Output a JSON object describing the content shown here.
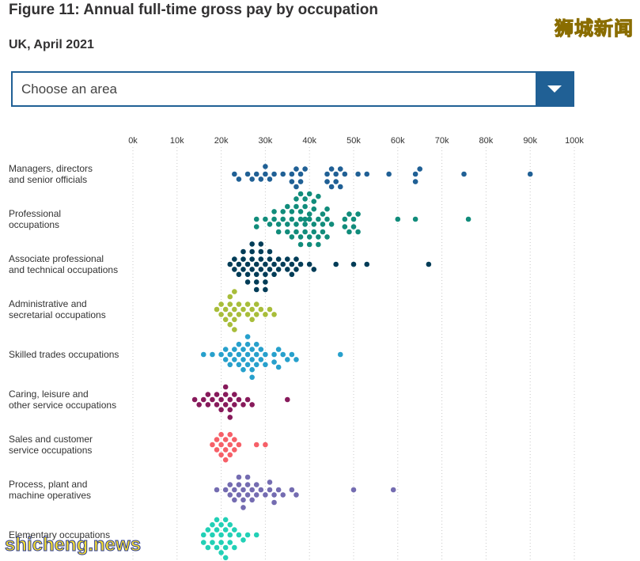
{
  "title": "Figure 11: Annual full-time gross pay by occupation",
  "subtitle": "UK, April 2021",
  "watermark_top": "狮城新闻",
  "watermark_bottom": "shicheng.news",
  "area_select": {
    "selected": "Choose an area",
    "icon": "chevron-down-icon"
  },
  "chart_data": {
    "type": "scatter",
    "title": "Figure 11: Annual full-time gross pay by occupation",
    "subtitle": "UK, April 2021",
    "xlim": [
      0,
      100
    ],
    "x_ticks": [
      "0k",
      "10k",
      "20k",
      "30k",
      "40k",
      "50k",
      "60k",
      "70k",
      "80k",
      "90k",
      "100k"
    ],
    "x_tick_values": [
      0,
      10,
      20,
      30,
      40,
      50,
      60,
      70,
      80,
      90,
      100
    ],
    "grid": "vertical-dotted",
    "series": [
      {
        "label_lines": [
          "Managers, directors",
          "and senior officials"
        ],
        "color": "#206095",
        "values": [
          23,
          24,
          26,
          27,
          28,
          29,
          30,
          30,
          31,
          32,
          34,
          36,
          36,
          37,
          37,
          38,
          38,
          39,
          44,
          44,
          45,
          45,
          46,
          46,
          47,
          47,
          48,
          51,
          53,
          58,
          64,
          64,
          65,
          75,
          90
        ]
      },
      {
        "label_lines": [
          "Professional",
          "occupations"
        ],
        "color": "#118c7b",
        "values": [
          28,
          28,
          30,
          31,
          32,
          32,
          33,
          33,
          34,
          34,
          35,
          35,
          35,
          36,
          36,
          36,
          37,
          37,
          37,
          37,
          38,
          38,
          38,
          38,
          38,
          39,
          39,
          39,
          39,
          39,
          40,
          40,
          40,
          40,
          40,
          41,
          41,
          41,
          41,
          42,
          42,
          42,
          42,
          43,
          43,
          43,
          44,
          44,
          44,
          45,
          48,
          48,
          49,
          49,
          50,
          50,
          51,
          51,
          60,
          64,
          76
        ]
      },
      {
        "label_lines": [
          "Associate professional",
          "and technical occupations"
        ],
        "color": "#003c57",
        "values": [
          22,
          23,
          23,
          24,
          24,
          25,
          25,
          25,
          26,
          26,
          26,
          27,
          27,
          27,
          27,
          28,
          28,
          28,
          28,
          29,
          29,
          29,
          29,
          30,
          30,
          30,
          30,
          31,
          31,
          31,
          32,
          32,
          33,
          33,
          34,
          35,
          35,
          36,
          36,
          37,
          37,
          38,
          40,
          41,
          46,
          50,
          53,
          67
        ]
      },
      {
        "label_lines": [
          "Administrative and",
          "secretarial occupations"
        ],
        "color": "#a8bd3a",
        "values": [
          19,
          20,
          20,
          21,
          21,
          22,
          22,
          22,
          22,
          23,
          23,
          23,
          23,
          24,
          24,
          25,
          26,
          26,
          27,
          27,
          28,
          28,
          29,
          30,
          31,
          32
        ]
      },
      {
        "label_lines": [
          "Skilled trades occupations"
        ],
        "color": "#27a0cc",
        "values": [
          16,
          18,
          20,
          21,
          21,
          22,
          22,
          23,
          23,
          24,
          24,
          24,
          25,
          25,
          25,
          26,
          26,
          26,
          26,
          27,
          27,
          27,
          27,
          28,
          28,
          28,
          29,
          29,
          30,
          30,
          32,
          32,
          33,
          33,
          34,
          35,
          36,
          37,
          47
        ]
      },
      {
        "label_lines": [
          "Caring, leisure and",
          "other service occupations"
        ],
        "color": "#871a5b",
        "values": [
          14,
          15,
          16,
          17,
          17,
          18,
          19,
          19,
          20,
          20,
          21,
          21,
          21,
          22,
          22,
          22,
          23,
          23,
          24,
          25,
          26,
          27,
          35
        ]
      },
      {
        "label_lines": [
          "Sales and customer",
          "service occupations"
        ],
        "color": "#f66068",
        "values": [
          18,
          19,
          19,
          20,
          20,
          20,
          21,
          21,
          21,
          22,
          22,
          22,
          23,
          23,
          24,
          28,
          30
        ]
      },
      {
        "label_lines": [
          "Process, plant and",
          "machine operatives"
        ],
        "color": "#746cb1",
        "values": [
          19,
          21,
          22,
          22,
          23,
          23,
          24,
          24,
          24,
          25,
          25,
          25,
          26,
          26,
          26,
          27,
          27,
          28,
          28,
          29,
          30,
          31,
          31,
          32,
          32,
          33,
          34,
          36,
          37,
          50,
          59
        ]
      },
      {
        "label_lines": [
          "Elementary occupations"
        ],
        "color": "#22d0b6",
        "values": [
          16,
          16,
          17,
          17,
          18,
          18,
          18,
          19,
          19,
          19,
          20,
          20,
          20,
          20,
          21,
          21,
          21,
          21,
          22,
          22,
          22,
          23,
          23,
          24,
          25,
          26,
          28
        ]
      }
    ]
  }
}
